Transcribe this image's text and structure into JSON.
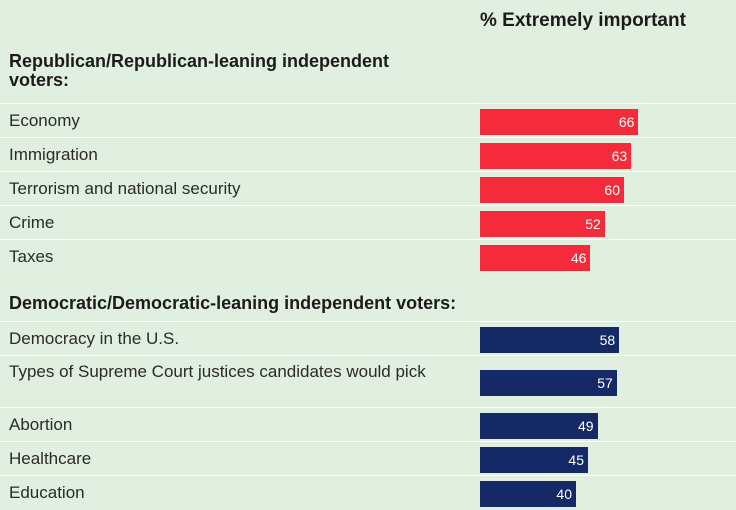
{
  "chart_data": {
    "type": "bar",
    "orientation": "horizontal",
    "column_header": "% Extremely important",
    "groups": [
      {
        "title": "Republican/Republican-leaning independent voters:",
        "color": "#f42b3a",
        "categories": [
          "Economy",
          "Immigration",
          "Terrorism and national security",
          "Crime",
          "Taxes"
        ],
        "values": [
          66,
          63,
          60,
          52,
          46
        ]
      },
      {
        "title": "Democratic/Democratic-leaning independent voters:",
        "color": "#142966",
        "categories": [
          "Democracy in the U.S.",
          "Types of Supreme Court justices candidates would pick",
          "Abortion",
          "Healthcare",
          "Education"
        ],
        "values": [
          58,
          57,
          49,
          45,
          40
        ]
      }
    ]
  }
}
